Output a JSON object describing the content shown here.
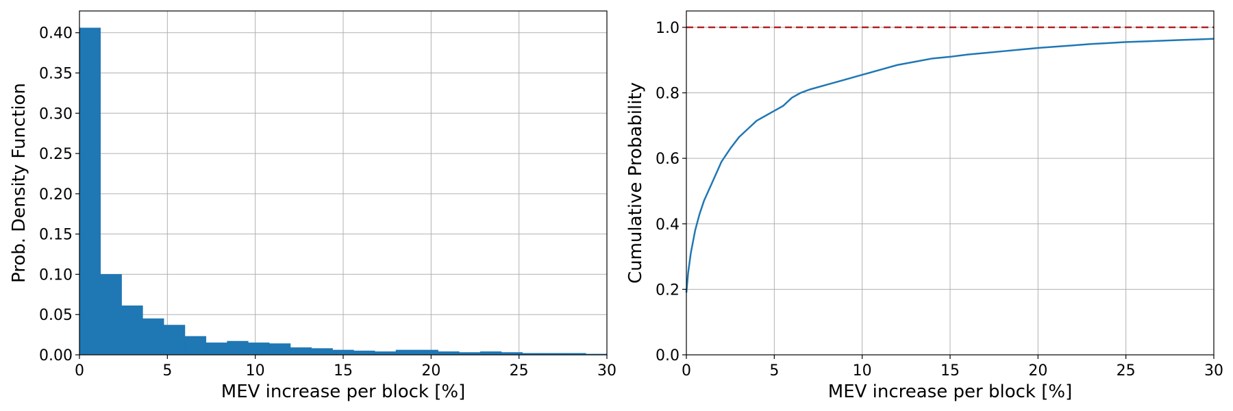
{
  "chart_data": [
    {
      "type": "bar",
      "subtype": "histogram",
      "xlabel": "MEV increase per block [%]",
      "ylabel": "Prob. Density Function",
      "xlim": [
        0,
        30
      ],
      "ylim": [
        0,
        0.427
      ],
      "xticks": [
        "0",
        "5",
        "10",
        "15",
        "20",
        "25",
        "30"
      ],
      "yticks": [
        "0.00",
        "0.05",
        "0.10",
        "0.15",
        "0.20",
        "0.25",
        "0.30",
        "0.35",
        "0.40"
      ],
      "grid": true,
      "bar_color": "#1f77b4",
      "bin_edges": [
        0,
        1.2,
        2.4,
        3.6,
        4.8,
        6.0,
        7.2,
        8.4,
        9.6,
        10.8,
        12.0,
        13.2,
        14.4,
        15.6,
        16.8,
        18.0,
        19.2,
        20.4,
        21.6,
        22.8,
        24.0,
        25.2,
        26.4,
        27.6,
        28.8,
        30.0
      ],
      "values": [
        0.406,
        0.1,
        0.061,
        0.045,
        0.037,
        0.023,
        0.015,
        0.017,
        0.015,
        0.014,
        0.009,
        0.008,
        0.006,
        0.005,
        0.004,
        0.006,
        0.006,
        0.004,
        0.003,
        0.004,
        0.003,
        0.002,
        0.002,
        0.002,
        0.001
      ]
    },
    {
      "type": "line",
      "xlabel": "MEV increase per block [%]",
      "ylabel": "Cumulative Probability",
      "xlim": [
        0,
        30
      ],
      "ylim": [
        0,
        1.05
      ],
      "xticks": [
        "0",
        "5",
        "10",
        "15",
        "20",
        "25",
        "30"
      ],
      "yticks": [
        "0.0",
        "0.2",
        "0.4",
        "0.6",
        "0.8",
        "1.0"
      ],
      "grid": true,
      "series": [
        {
          "color": "#1f77b4",
          "x": [
            0,
            0.1,
            0.25,
            0.5,
            0.75,
            1.0,
            1.5,
            2.0,
            2.5,
            3.0,
            3.5,
            4.0,
            4.5,
            5.0,
            5.5,
            6.0,
            6.5,
            7.0,
            8.0,
            9.0,
            10.0,
            11.0,
            12.0,
            13.0,
            14.0,
            15.0,
            16.0,
            17.0,
            18.0,
            19.0,
            20.0,
            21.0,
            22.0,
            23.0,
            24.0,
            25.0,
            26.0,
            27.0,
            28.0,
            29.0,
            30.0
          ],
          "y": [
            0.19,
            0.25,
            0.31,
            0.38,
            0.43,
            0.47,
            0.53,
            0.59,
            0.63,
            0.665,
            0.69,
            0.715,
            0.73,
            0.745,
            0.76,
            0.785,
            0.8,
            0.81,
            0.825,
            0.84,
            0.855,
            0.87,
            0.885,
            0.895,
            0.905,
            0.91,
            0.917,
            0.922,
            0.927,
            0.932,
            0.937,
            0.941,
            0.945,
            0.949,
            0.952,
            0.955,
            0.957,
            0.959,
            0.961,
            0.963,
            0.965
          ]
        },
        {
          "color": "#b22222",
          "style": "dashed",
          "x": [
            0,
            30
          ],
          "y": [
            1.0,
            1.0
          ]
        }
      ]
    }
  ]
}
